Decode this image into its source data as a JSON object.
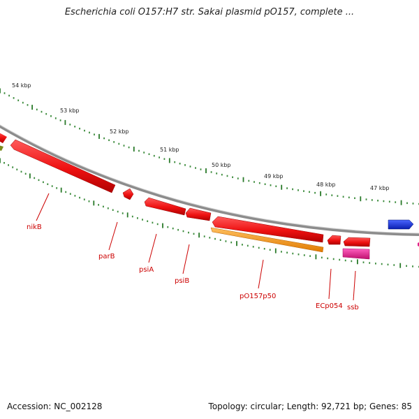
{
  "title": "Escherichia coli O157:H7 str. Sakai plasmid pO157, complete ...",
  "footer": {
    "accession": "Accession: NC_002128",
    "stats": "Topology: circular; Length: 92,721 bp; Genes: 85"
  },
  "colors": {
    "backbone": "#8c8c8c",
    "gene_red": "#ee1111",
    "gene_orange": "#ff9a1a",
    "gene_magenta": "#e0208c",
    "gene_blue": "#1133dd",
    "gene_olive": "#7a8a1a",
    "tick_dark": "#2a7a2a",
    "tick_dot": "#3a8a3a",
    "label_red": "#cc0000"
  },
  "tick_labels": [
    "54 kbp",
    "53 kbp",
    "52 kbp",
    "51 kbp",
    "50 kbp",
    "49 kbp",
    "48 kbp",
    "47 kbp"
  ],
  "gene_labels": [
    "nikB",
    "parB",
    "psiA",
    "psiB",
    "pO157p50",
    "ECp054",
    "ssb"
  ]
}
